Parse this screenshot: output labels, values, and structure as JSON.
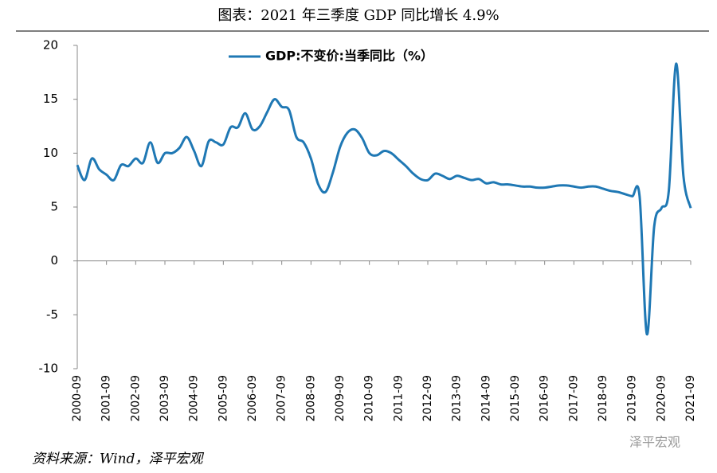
{
  "chart_data": {
    "type": "line",
    "title": "图表：2021 年三季度 GDP 同比增长 4.9%",
    "source": "资料来源：Wind，泽平宏观",
    "watermark": "泽平宏观",
    "categories": [
      "2000-09",
      null,
      null,
      null,
      "2001-09",
      null,
      null,
      null,
      "2002-09",
      null,
      null,
      null,
      "2003-09",
      null,
      null,
      null,
      "2004-09",
      null,
      null,
      null,
      "2005-09",
      null,
      null,
      null,
      "2006-09",
      null,
      null,
      null,
      "2007-09",
      null,
      null,
      null,
      "2008-09",
      null,
      null,
      null,
      "2009-09",
      null,
      null,
      null,
      "2010-09",
      null,
      null,
      null,
      "2011-09",
      null,
      null,
      null,
      "2012-09",
      null,
      null,
      null,
      "2013-09",
      null,
      null,
      null,
      "2014-09",
      null,
      null,
      null,
      "2015-09",
      null,
      null,
      null,
      "2016-09",
      null,
      null,
      null,
      "2017-09",
      null,
      null,
      null,
      "2018-09",
      null,
      null,
      null,
      "2019-09",
      null,
      null,
      null,
      "2020-09",
      null,
      null,
      null,
      "2021-09"
    ],
    "series": [
      {
        "name": "GDP:不变价:当季同比（%）",
        "color": "#1f78b4",
        "values": [
          8.9,
          7.5,
          9.5,
          8.5,
          8.0,
          7.5,
          8.9,
          8.8,
          9.5,
          9.1,
          11.0,
          9.1,
          10.0,
          10.0,
          10.5,
          11.5,
          10.2,
          8.8,
          11.1,
          11.0,
          10.8,
          12.4,
          12.4,
          13.7,
          12.2,
          12.5,
          13.8,
          15.0,
          14.3,
          14.0,
          11.5,
          11.0,
          9.5,
          7.1,
          6.4,
          8.2,
          10.6,
          11.9,
          12.2,
          11.4,
          10.0,
          9.8,
          10.2,
          10.0,
          9.4,
          8.8,
          8.1,
          7.6,
          7.5,
          8.1,
          7.9,
          7.6,
          7.9,
          7.7,
          7.5,
          7.6,
          7.2,
          7.3,
          7.1,
          7.1,
          7.0,
          6.9,
          6.9,
          6.8,
          6.8,
          6.9,
          7.0,
          7.0,
          6.9,
          6.8,
          6.9,
          6.9,
          6.7,
          6.5,
          6.4,
          6.2,
          6.0,
          6.0,
          -6.8,
          3.2,
          4.9,
          6.5,
          18.3,
          7.9,
          4.9
        ]
      }
    ],
    "ylim": [
      -10,
      20
    ],
    "yticks": [
      -10,
      -5,
      0,
      5,
      10,
      15,
      20
    ],
    "legend": "top"
  }
}
